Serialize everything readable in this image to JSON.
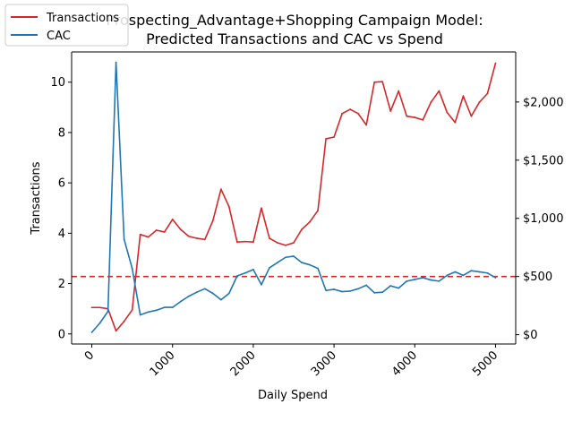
{
  "chart_data": {
    "type": "line",
    "title_lines": [
      "Prospecting_Advantage+Shopping Campaign Model:",
      "Predicted Transactions and CAC vs Spend"
    ],
    "xlabel": "Daily Spend",
    "ylabel": "Transactions",
    "y2label": "",
    "xlim": [
      -250,
      5250
    ],
    "ylim": [
      -0.4,
      11.2
    ],
    "y2lim": [
      -80,
      2430
    ],
    "x_ticks": [
      0,
      1000,
      2000,
      3000,
      4000,
      5000
    ],
    "x_tick_labels": [
      "0",
      "1000",
      "2000",
      "3000",
      "4000",
      "5000"
    ],
    "y_ticks": [
      0,
      2,
      4,
      6,
      8,
      10
    ],
    "y_tick_labels": [
      "0",
      "2",
      "4",
      "6",
      "8",
      "10"
    ],
    "y2_ticks": [
      0,
      500,
      1000,
      1500,
      2000
    ],
    "y2_tick_labels": [
      "$0",
      "$500",
      "$1,000",
      "$1,500",
      "$2,000"
    ],
    "grid": false,
    "legend_position": "top-left",
    "reference_line": {
      "axis": "y2",
      "value": 500,
      "style": "dashed",
      "color": "#d62728"
    },
    "x": [
      0,
      100,
      200,
      300,
      400,
      500,
      600,
      700,
      800,
      900,
      1000,
      1100,
      1200,
      1300,
      1400,
      1500,
      1600,
      1700,
      1800,
      1900,
      2000,
      2100,
      2200,
      2300,
      2400,
      2500,
      2600,
      2700,
      2800,
      2900,
      3000,
      3100,
      3200,
      3300,
      3400,
      3500,
      3600,
      3700,
      3800,
      3900,
      4000,
      4100,
      4200,
      4300,
      4400,
      4500,
      4600,
      4700,
      4800,
      4900,
      5000
    ],
    "series": [
      {
        "name": "Transactions",
        "axis": "y",
        "color": "#d62728",
        "values": [
          1.05,
          1.05,
          1.0,
          0.12,
          0.5,
          0.95,
          3.95,
          3.85,
          4.12,
          4.05,
          4.55,
          4.15,
          3.88,
          3.8,
          3.75,
          4.5,
          5.75,
          5.05,
          3.65,
          3.67,
          3.65,
          5.0,
          3.8,
          3.62,
          3.52,
          3.62,
          4.15,
          4.45,
          4.9,
          7.75,
          7.82,
          8.75,
          8.92,
          8.75,
          8.3,
          10.0,
          10.02,
          8.85,
          9.65,
          8.65,
          8.6,
          8.5,
          9.2,
          9.65,
          8.8,
          8.4,
          9.45,
          8.65,
          9.2,
          9.55,
          10.75
        ]
      },
      {
        "name": "CAC",
        "axis": "y2",
        "color": "#1f77b4",
        "values": [
          20,
          100,
          200,
          2340,
          820,
          570,
          170,
          195,
          210,
          235,
          235,
          285,
          330,
          365,
          395,
          355,
          300,
          355,
          505,
          530,
          560,
          430,
          575,
          620,
          665,
          675,
          620,
          600,
          570,
          380,
          390,
          370,
          375,
          395,
          425,
          360,
          365,
          420,
          400,
          460,
          475,
          490,
          470,
          460,
          510,
          540,
          510,
          550,
          540,
          530,
          490
        ]
      }
    ]
  }
}
